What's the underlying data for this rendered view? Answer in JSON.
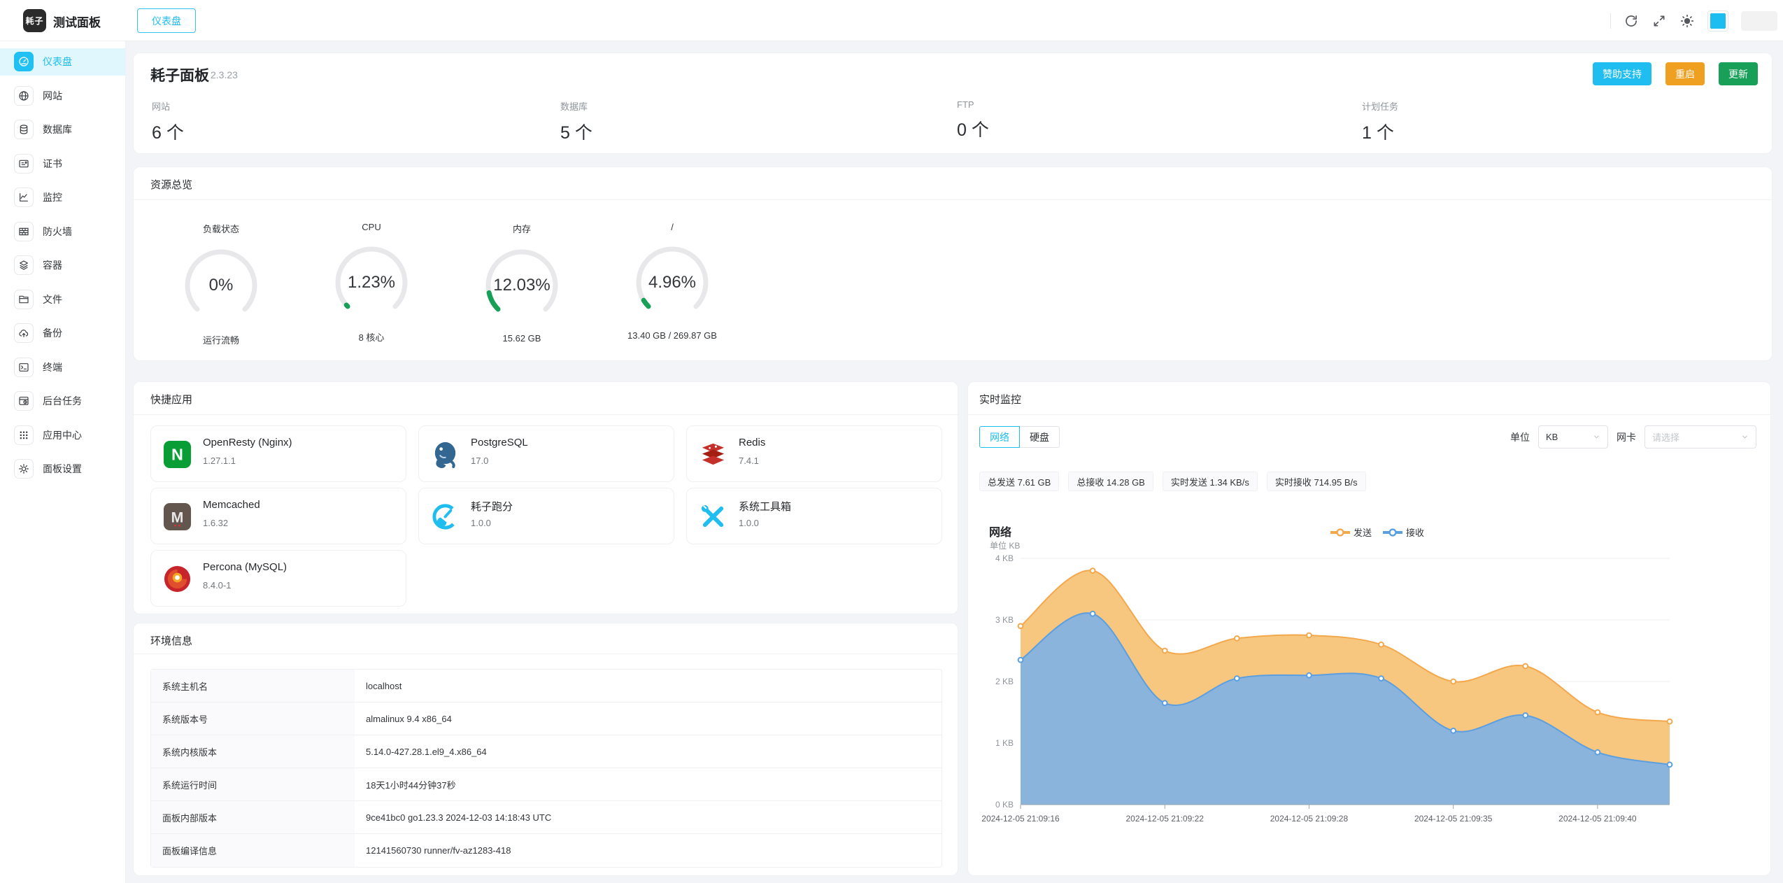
{
  "colors": {
    "primary": "#1dbdf0",
    "warning": "#f0a020",
    "success": "#18a058",
    "send": "#f3a84c",
    "send_fill": "#f7c67f",
    "recv": "#5b9fe0",
    "recv_fill": "#8ab4dc",
    "gauge_track": "#e8e8ea"
  },
  "topbar": {
    "logo_text": "耗子",
    "app_title": "测试面板",
    "tab": "仪表盘"
  },
  "sidebar": {
    "items": [
      {
        "label": "仪表盘"
      },
      {
        "label": "网站"
      },
      {
        "label": "数据库"
      },
      {
        "label": "证书"
      },
      {
        "label": "监控"
      },
      {
        "label": "防火墙"
      },
      {
        "label": "容器"
      },
      {
        "label": "文件"
      },
      {
        "label": "备份"
      },
      {
        "label": "终端"
      },
      {
        "label": "后台任务"
      },
      {
        "label": "应用中心"
      },
      {
        "label": "面板设置"
      }
    ]
  },
  "header": {
    "title": "耗子面板",
    "version": "2.3.23",
    "buttons": {
      "sponsor": "赞助支持",
      "restart": "重启",
      "update": "更新"
    },
    "stats": [
      {
        "label": "网站",
        "value": "6 个"
      },
      {
        "label": "数据库",
        "value": "5 个"
      },
      {
        "label": "FTP",
        "value": "0 个"
      },
      {
        "label": "计划任务",
        "value": "1 个"
      }
    ]
  },
  "overview": {
    "title": "资源总览",
    "gauges": [
      {
        "title": "负载状态",
        "percent": 0,
        "display": "0%",
        "caption": "运行流畅"
      },
      {
        "title": "CPU",
        "percent": 1.23,
        "display": "1.23%",
        "caption": "8 核心"
      },
      {
        "title": "内存",
        "percent": 12.03,
        "display": "12.03%",
        "caption": "15.62 GB"
      },
      {
        "title": "/",
        "percent": 4.96,
        "display": "4.96%",
        "caption": "13.40 GB / 269.87 GB"
      }
    ]
  },
  "apps": {
    "title": "快捷应用",
    "items": [
      {
        "name": "OpenResty (Nginx)",
        "version": "1.27.1.1",
        "icon": "nginx-icon"
      },
      {
        "name": "PostgreSQL",
        "version": "17.0",
        "icon": "postgresql-icon"
      },
      {
        "name": "Redis",
        "version": "7.4.1",
        "icon": "redis-icon"
      },
      {
        "name": "Memcached",
        "version": "1.6.32",
        "icon": "memcached-icon"
      },
      {
        "name": "耗子跑分",
        "version": "1.0.0",
        "icon": "benchmark-icon"
      },
      {
        "name": "系统工具箱",
        "version": "1.0.0",
        "icon": "toolbox-icon"
      },
      {
        "name": "Percona (MySQL)",
        "version": "8.4.0-1",
        "icon": "percona-icon"
      }
    ]
  },
  "env": {
    "title": "环境信息",
    "rows": [
      {
        "key": "系统主机名",
        "value": "localhost"
      },
      {
        "key": "系统版本号",
        "value": "almalinux 9.4 x86_64"
      },
      {
        "key": "系统内核版本",
        "value": "5.14.0-427.28.1.el9_4.x86_64"
      },
      {
        "key": "系统运行时间",
        "value": "18天1小时44分钟37秒"
      },
      {
        "key": "面板内部版本",
        "value": "9ce41bc0 go1.23.3 2024-12-03 14:18:43 UTC"
      },
      {
        "key": "面板编译信息",
        "value": "12141560730 runner/fv-az1283-418"
      }
    ]
  },
  "monitor": {
    "title": "实时监控",
    "tabs": [
      {
        "label": "网络"
      },
      {
        "label": "硬盘"
      }
    ],
    "unit_label": "单位",
    "unit_value": "KB",
    "nic_label": "网卡",
    "nic_placeholder": "请选择",
    "chips": [
      {
        "text": "总发送 7.61 GB"
      },
      {
        "text": "总接收 14.28 GB"
      },
      {
        "text": "实时发送 1.34 KB/s"
      },
      {
        "text": "实时接收 714.95 B/s"
      }
    ]
  },
  "chart_data": {
    "type": "area",
    "title": "网络",
    "unit_label": "单位 KB",
    "x": [
      "2024-12-05 21:09:16",
      "2024-12-05 21:09:19",
      "2024-12-05 21:09:22",
      "2024-12-05 21:09:25",
      "2024-12-05 21:09:28",
      "2024-12-05 21:09:31",
      "2024-12-05 21:09:35",
      "2024-12-05 21:09:37",
      "2024-12-05 21:09:40",
      "2024-12-05 21:09:43"
    ],
    "x_tick_indices": [
      0,
      2,
      4,
      6,
      8
    ],
    "series": [
      {
        "name": "发送",
        "color": "#f3a84c",
        "fill": "#f7c67f",
        "values": [
          2.9,
          3.8,
          2.5,
          2.7,
          2.75,
          2.6,
          2.0,
          2.25,
          1.5,
          1.35
        ]
      },
      {
        "name": "接收",
        "color": "#5b9fe0",
        "fill": "#8ab4dc",
        "values": [
          2.35,
          3.1,
          1.65,
          2.05,
          2.1,
          2.05,
          1.2,
          1.45,
          0.85,
          0.65
        ]
      }
    ],
    "ylim": [
      0,
      4
    ],
    "yticks": [
      "0 KB",
      "1 KB",
      "2 KB",
      "3 KB",
      "4 KB"
    ],
    "grid": true,
    "legend_position": "top-right"
  }
}
